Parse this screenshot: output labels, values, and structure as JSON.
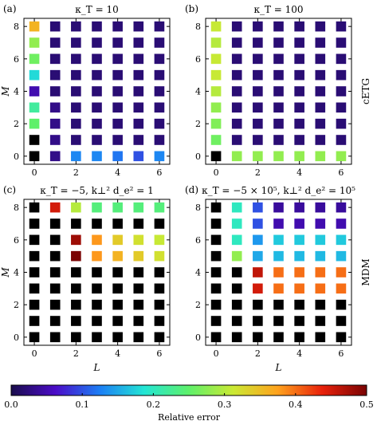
{
  "chart_data": {
    "type": "heatmap",
    "x": [
      0,
      1,
      2,
      3,
      4,
      5,
      6
    ],
    "y": [
      0,
      1,
      2,
      3,
      4,
      5,
      6,
      7,
      8
    ],
    "x_ticks": [
      "0",
      "2",
      "4",
      "6"
    ],
    "y_ticks": [
      "0",
      "2",
      "4",
      "6",
      "8"
    ],
    "xlabel": "L",
    "ylabel": "M",
    "row_labels": [
      "cETG",
      "MDM"
    ],
    "colorbar": {
      "label": "Relative error",
      "range": [
        0.0,
        0.5
      ],
      "ticks": [
        "0.0",
        "0.1",
        "0.2",
        "0.3",
        "0.4",
        "0.5"
      ],
      "colors": [
        "#1a0d4d",
        "#4b0cc8",
        "#1c7ff5",
        "#23e6d4",
        "#5ef06a",
        "#cbe933",
        "#ffa21d",
        "#e8210b",
        "#7a0303"
      ],
      "nan_color": "#000000"
    },
    "note": "Values are relative errors indexed values[M][L]; null = black square (no value / off-scale).",
    "panels": [
      {
        "label": "(a)",
        "title": "κ_T = 10",
        "values": [
          [
            null,
            0.03,
            0.13,
            0.13,
            0.12,
            0.1,
            0.13
          ],
          [
            null,
            0.03,
            0.02,
            0.02,
            0.02,
            0.02,
            0.02
          ],
          [
            0.25,
            0.03,
            0.02,
            0.02,
            0.02,
            0.02,
            0.02
          ],
          [
            0.22,
            0.03,
            0.02,
            0.02,
            0.02,
            0.02,
            0.02
          ],
          [
            0.05,
            0.02,
            0.02,
            0.02,
            0.02,
            0.02,
            0.02
          ],
          [
            0.18,
            0.02,
            0.02,
            0.02,
            0.02,
            0.02,
            0.02
          ],
          [
            0.26,
            0.02,
            0.02,
            0.02,
            0.02,
            0.02,
            0.02
          ],
          [
            0.28,
            0.02,
            0.02,
            0.02,
            0.02,
            0.02,
            0.02
          ],
          [
            0.36,
            0.02,
            0.02,
            0.02,
            0.02,
            0.02,
            0.02
          ]
        ]
      },
      {
        "label": "(b)",
        "title": "κ_T = 100",
        "values": [
          [
            null,
            0.28,
            0.28,
            0.28,
            0.28,
            0.28,
            0.28
          ],
          [
            0.26,
            0.02,
            0.02,
            0.02,
            0.02,
            0.02,
            0.02
          ],
          [
            0.27,
            0.02,
            0.02,
            0.02,
            0.02,
            0.02,
            0.02
          ],
          [
            0.28,
            0.02,
            0.02,
            0.02,
            0.02,
            0.02,
            0.02
          ],
          [
            0.3,
            0.02,
            0.02,
            0.02,
            0.02,
            0.02,
            0.02
          ],
          [
            0.31,
            0.02,
            0.02,
            0.02,
            0.02,
            0.02,
            0.02
          ],
          [
            0.31,
            0.02,
            0.02,
            0.02,
            0.02,
            0.02,
            0.02
          ],
          [
            0.3,
            0.02,
            0.02,
            0.02,
            0.02,
            0.02,
            0.02
          ],
          [
            0.31,
            0.02,
            0.02,
            0.02,
            0.02,
            0.02,
            0.02
          ]
        ]
      },
      {
        "label": "(c)",
        "title": "κ_T = −5, k⊥² d_e² = 1",
        "values": [
          [
            null,
            null,
            null,
            null,
            null,
            null,
            null
          ],
          [
            null,
            null,
            null,
            null,
            null,
            null,
            null
          ],
          [
            null,
            null,
            null,
            null,
            null,
            null,
            null
          ],
          [
            null,
            null,
            null,
            null,
            null,
            null,
            null
          ],
          [
            null,
            null,
            null,
            null,
            null,
            null,
            null
          ],
          [
            null,
            null,
            0.5,
            0.38,
            0.36,
            0.34,
            0.32
          ],
          [
            null,
            null,
            0.48,
            0.38,
            0.34,
            0.32,
            0.31
          ],
          [
            null,
            null,
            null,
            null,
            null,
            null,
            null
          ],
          [
            null,
            0.45,
            0.3,
            0.24,
            0.24,
            0.24,
            0.24
          ]
        ]
      },
      {
        "label": "(d)",
        "title": "κ_T = −5 × 10⁵, k⊥² d_e² = 10⁵",
        "values": [
          [
            null,
            null,
            null,
            null,
            null,
            null,
            null
          ],
          [
            null,
            null,
            null,
            null,
            null,
            null,
            null
          ],
          [
            null,
            null,
            null,
            null,
            null,
            null,
            null
          ],
          [
            null,
            null,
            0.45,
            0.4,
            0.4,
            0.4,
            0.4
          ],
          [
            null,
            null,
            0.46,
            0.4,
            0.4,
            0.4,
            0.4
          ],
          [
            null,
            0.28,
            0.15,
            0.16,
            0.16,
            0.16,
            0.16
          ],
          [
            null,
            0.2,
            0.14,
            0.17,
            0.17,
            0.17,
            0.17
          ],
          [
            null,
            0.2,
            0.1,
            0.05,
            0.05,
            0.05,
            0.05
          ],
          [
            null,
            0.2,
            0.1,
            0.04,
            0.04,
            0.04,
            0.04
          ]
        ]
      }
    ]
  }
}
